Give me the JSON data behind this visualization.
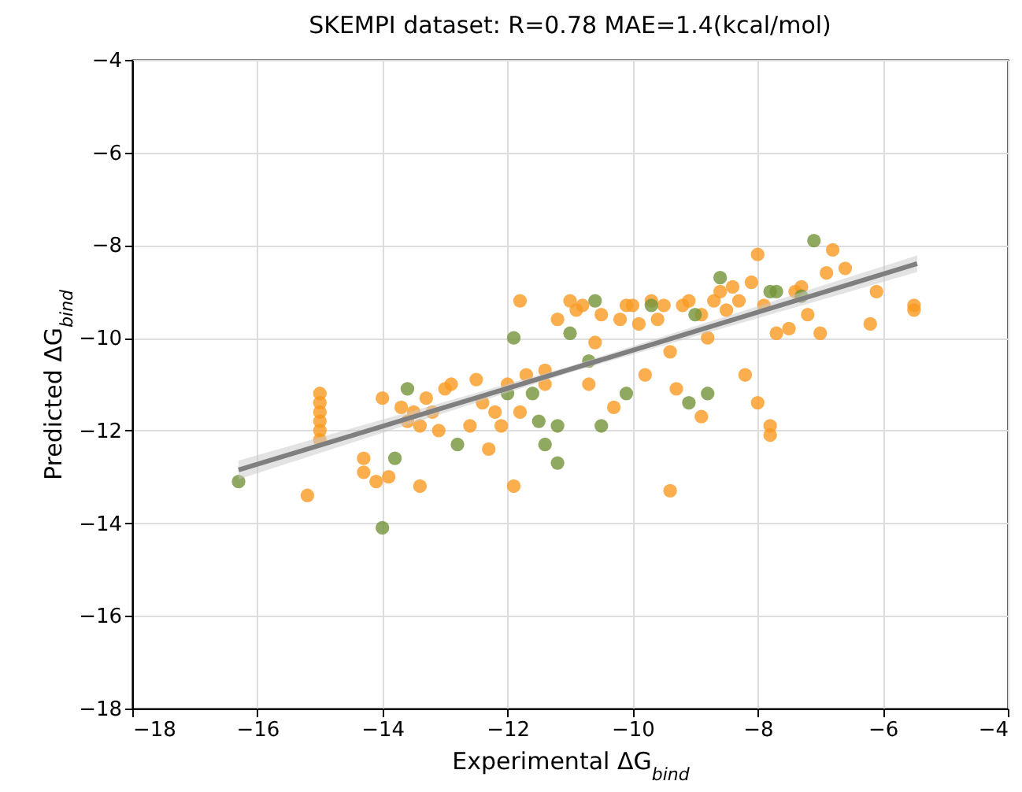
{
  "chart_data": {
    "type": "scatter",
    "title": "SKEMPI dataset: R=0.78 MAE=1.4(kcal/mol)",
    "xlabel": "Experimental ΔG$_{bind}$",
    "ylabel": "Predicted ΔG$_{bind}$",
    "xlim": [
      -18,
      -4
    ],
    "ylim": [
      -18,
      -4
    ],
    "xticks": [
      -18,
      -16,
      -14,
      -12,
      -10,
      -8,
      -6,
      -4
    ],
    "yticks": [
      -18,
      -16,
      -14,
      -12,
      -10,
      -8,
      -6,
      -4
    ],
    "grid": true,
    "marker": "circle",
    "series": [
      {
        "color": "#fa9a22",
        "x": [
          -15.0,
          -15.0,
          -15.0,
          -15.0,
          -15.0,
          -15.0,
          -15.2,
          -14.3,
          -14.3,
          -14.1,
          -13.9,
          -14.0,
          -13.7,
          -13.6,
          -13.5,
          -13.4,
          -13.3,
          -13.2,
          -13.1,
          -13.0,
          -12.9,
          -12.6,
          -12.5,
          -12.4,
          -12.2,
          -12.1,
          -12.0,
          -11.9,
          -11.8,
          -11.8,
          -11.7,
          -11.4,
          -11.2,
          -11.0,
          -10.9,
          -10.8,
          -10.6,
          -10.5,
          -10.3,
          -10.2,
          -10.1,
          -10.0,
          -9.9,
          -9.8,
          -9.7,
          -9.6,
          -9.5,
          -9.4,
          -9.4,
          -9.3,
          -9.2,
          -8.9,
          -8.8,
          -8.7,
          -8.6,
          -8.5,
          -8.4,
          -8.3,
          -8.2,
          -8.1,
          -8.0,
          -7.9,
          -7.8,
          -7.8,
          -7.7,
          -7.5,
          -7.4,
          -7.3,
          -7.2,
          -7.0,
          -6.9,
          -6.8,
          -6.6,
          -6.2,
          -6.1,
          -5.5,
          -5.5,
          -8.9,
          -8.0,
          -9.1,
          -10.7,
          -12.3,
          -13.4,
          -11.4
        ],
        "values": [
          -11.2,
          -11.4,
          -11.6,
          -11.8,
          -12.0,
          -12.2,
          -13.4,
          -12.6,
          -12.9,
          -13.1,
          -13.0,
          -11.3,
          -11.5,
          -11.8,
          -11.6,
          -11.9,
          -11.3,
          -11.6,
          -12.0,
          -11.1,
          -11.0,
          -11.9,
          -10.9,
          -11.4,
          -11.6,
          -11.9,
          -11.0,
          -13.2,
          -11.6,
          -9.2,
          -10.8,
          -10.7,
          -9.6,
          -9.2,
          -9.4,
          -9.3,
          -10.1,
          -9.5,
          -11.5,
          -9.6,
          -9.3,
          -9.3,
          -9.7,
          -10.8,
          -9.2,
          -9.6,
          -9.3,
          -10.3,
          -13.3,
          -11.1,
          -9.3,
          -9.5,
          -10.0,
          -9.2,
          -9.0,
          -9.4,
          -8.9,
          -9.2,
          -10.8,
          -8.8,
          -8.2,
          -9.3,
          -11.9,
          -12.1,
          -9.9,
          -9.8,
          -9.0,
          -8.9,
          -9.5,
          -9.9,
          -8.6,
          -8.1,
          -8.5,
          -9.7,
          -9.0,
          -9.3,
          -9.4,
          -11.7,
          -11.4,
          -9.2,
          -11.0,
          -12.4,
          -13.2,
          -11.0
        ]
      },
      {
        "color": "#74943a",
        "x": [
          -16.3,
          -14.0,
          -13.8,
          -13.6,
          -12.8,
          -12.0,
          -11.9,
          -11.6,
          -11.5,
          -11.4,
          -11.2,
          -11.2,
          -11.0,
          -10.7,
          -10.6,
          -10.5,
          -10.1,
          -9.7,
          -9.1,
          -9.0,
          -8.8,
          -8.6,
          -7.8,
          -7.3,
          -7.1,
          -7.7
        ],
        "values": [
          -13.1,
          -14.1,
          -12.6,
          -11.1,
          -12.3,
          -11.2,
          -10.0,
          -11.2,
          -11.8,
          -12.3,
          -12.7,
          -11.9,
          -9.9,
          -10.5,
          -9.2,
          -11.9,
          -11.2,
          -9.3,
          -11.4,
          -9.5,
          -11.2,
          -8.7,
          -9.0,
          -9.1,
          -7.9,
          -9.0
        ]
      },
      {
        "type": "line",
        "marker": "none",
        "color": "#7f7f7f",
        "x": [
          -16.3,
          -11.0,
          -5.45
        ],
        "values": [
          -12.85,
          -10.68,
          -8.4
        ],
        "lower": [
          -13.05,
          -10.75,
          -8.58
        ],
        "upper": [
          -12.65,
          -10.61,
          -8.22
        ]
      }
    ]
  }
}
